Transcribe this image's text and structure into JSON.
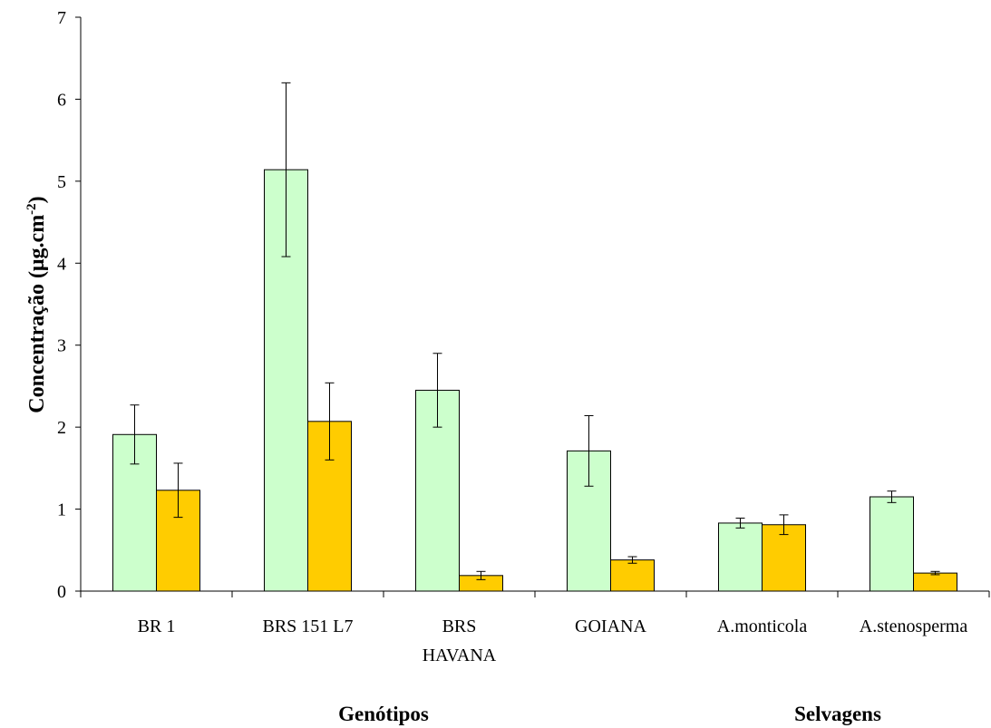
{
  "chart_data": {
    "type": "bar",
    "title": "",
    "xlabel": "",
    "ylabel": {
      "main": "Concentração (μg.cm",
      "superscript": "-2",
      "close": ")"
    },
    "ylim": [
      0,
      7
    ],
    "yticks": [
      "0",
      "1",
      "2",
      "3",
      "4",
      "5",
      "6",
      "7"
    ],
    "categories": [
      [
        "BR 1"
      ],
      [
        "BRS 151 L7"
      ],
      [
        "BRS",
        "HAVANA"
      ],
      [
        "GOIANA"
      ],
      [
        "A.monticola"
      ],
      [
        "A.stenosperma"
      ]
    ],
    "groups": [
      {
        "label": "Genótipos",
        "categories": [
          0,
          1,
          2,
          3
        ]
      },
      {
        "label": "Selvagens",
        "categories": [
          4,
          5
        ]
      }
    ],
    "series": [
      {
        "color": "#ccffcc",
        "values": [
          1.91,
          5.14,
          2.45,
          1.71,
          0.83,
          1.15
        ],
        "errors": [
          0.36,
          1.06,
          0.45,
          0.43,
          0.06,
          0.07
        ]
      },
      {
        "color": "#ffcc00",
        "values": [
          1.23,
          2.07,
          0.19,
          0.38,
          0.81,
          0.22
        ],
        "errors": [
          0.33,
          0.47,
          0.05,
          0.04,
          0.12,
          0.02
        ]
      }
    ],
    "legend": "none",
    "grid": false
  }
}
